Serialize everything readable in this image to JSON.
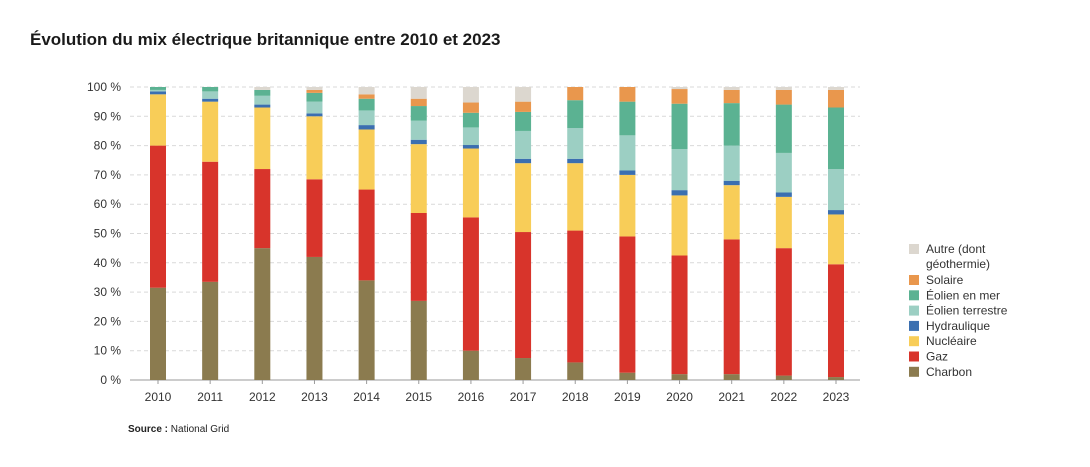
{
  "title": "Évolution du mix électrique britannique entre 2010 et 2023",
  "source": {
    "label": "Source :",
    "text": "National Grid"
  },
  "chart_data": {
    "type": "bar",
    "stacked": true,
    "categories": [
      "2010",
      "2011",
      "2012",
      "2013",
      "2014",
      "2015",
      "2016",
      "2017",
      "2018",
      "2019",
      "2020",
      "2021",
      "2022",
      "2023"
    ],
    "ylim": [
      0,
      100
    ],
    "yticks": [
      0,
      10,
      20,
      30,
      40,
      50,
      60,
      70,
      80,
      90,
      100
    ],
    "ytick_suffix": " %",
    "grid": true,
    "legend_position": "right",
    "series": [
      {
        "name": "Charbon",
        "color": "#8b7b4f",
        "values": [
          31.5,
          33.5,
          45,
          42,
          34,
          27,
          10,
          7.5,
          6,
          2.5,
          2,
          2,
          1.5,
          1
        ]
      },
      {
        "name": "Gaz",
        "color": "#d8342b",
        "values": [
          48.5,
          41,
          27,
          26.5,
          31,
          30,
          45.5,
          43,
          45,
          46.5,
          40.5,
          46,
          43.5,
          38.5
        ]
      },
      {
        "name": "Nucléaire",
        "color": "#f8cd58",
        "values": [
          17.5,
          20.5,
          21,
          21.5,
          20.5,
          23.5,
          23.5,
          23.5,
          23,
          21,
          20.5,
          18.5,
          17.5,
          17
        ]
      },
      {
        "name": "Hydraulique",
        "color": "#3b6fb0",
        "values": [
          1,
          1,
          1,
          1,
          1.5,
          1.5,
          1.2,
          1.5,
          1.5,
          1.5,
          1.8,
          1.5,
          1.5,
          1.5
        ]
      },
      {
        "name": "Éolien terrestre",
        "color": "#9ccfc3",
        "values": [
          0.5,
          2.5,
          3,
          4,
          5,
          6.5,
          6,
          9.5,
          10.5,
          12,
          14,
          12,
          13.5,
          14
        ]
      },
      {
        "name": "Éolien en mer",
        "color": "#5bb292",
        "values": [
          1,
          1.5,
          2,
          3,
          4,
          5,
          5,
          6.5,
          9.5,
          11.5,
          15.5,
          14.5,
          16.5,
          21
        ]
      },
      {
        "name": "Solaire",
        "color": "#e9974d",
        "values": [
          0,
          0,
          0,
          1,
          1.5,
          2.5,
          3.5,
          3.5,
          4.5,
          5,
          5,
          4.5,
          5,
          6
        ]
      },
      {
        "name": "Autre (dont géothermie)",
        "color": "#dcd7cf",
        "values": [
          0,
          0,
          1,
          1,
          2.5,
          4,
          5.3,
          5,
          0,
          0,
          0.7,
          1,
          1,
          1
        ]
      }
    ]
  }
}
